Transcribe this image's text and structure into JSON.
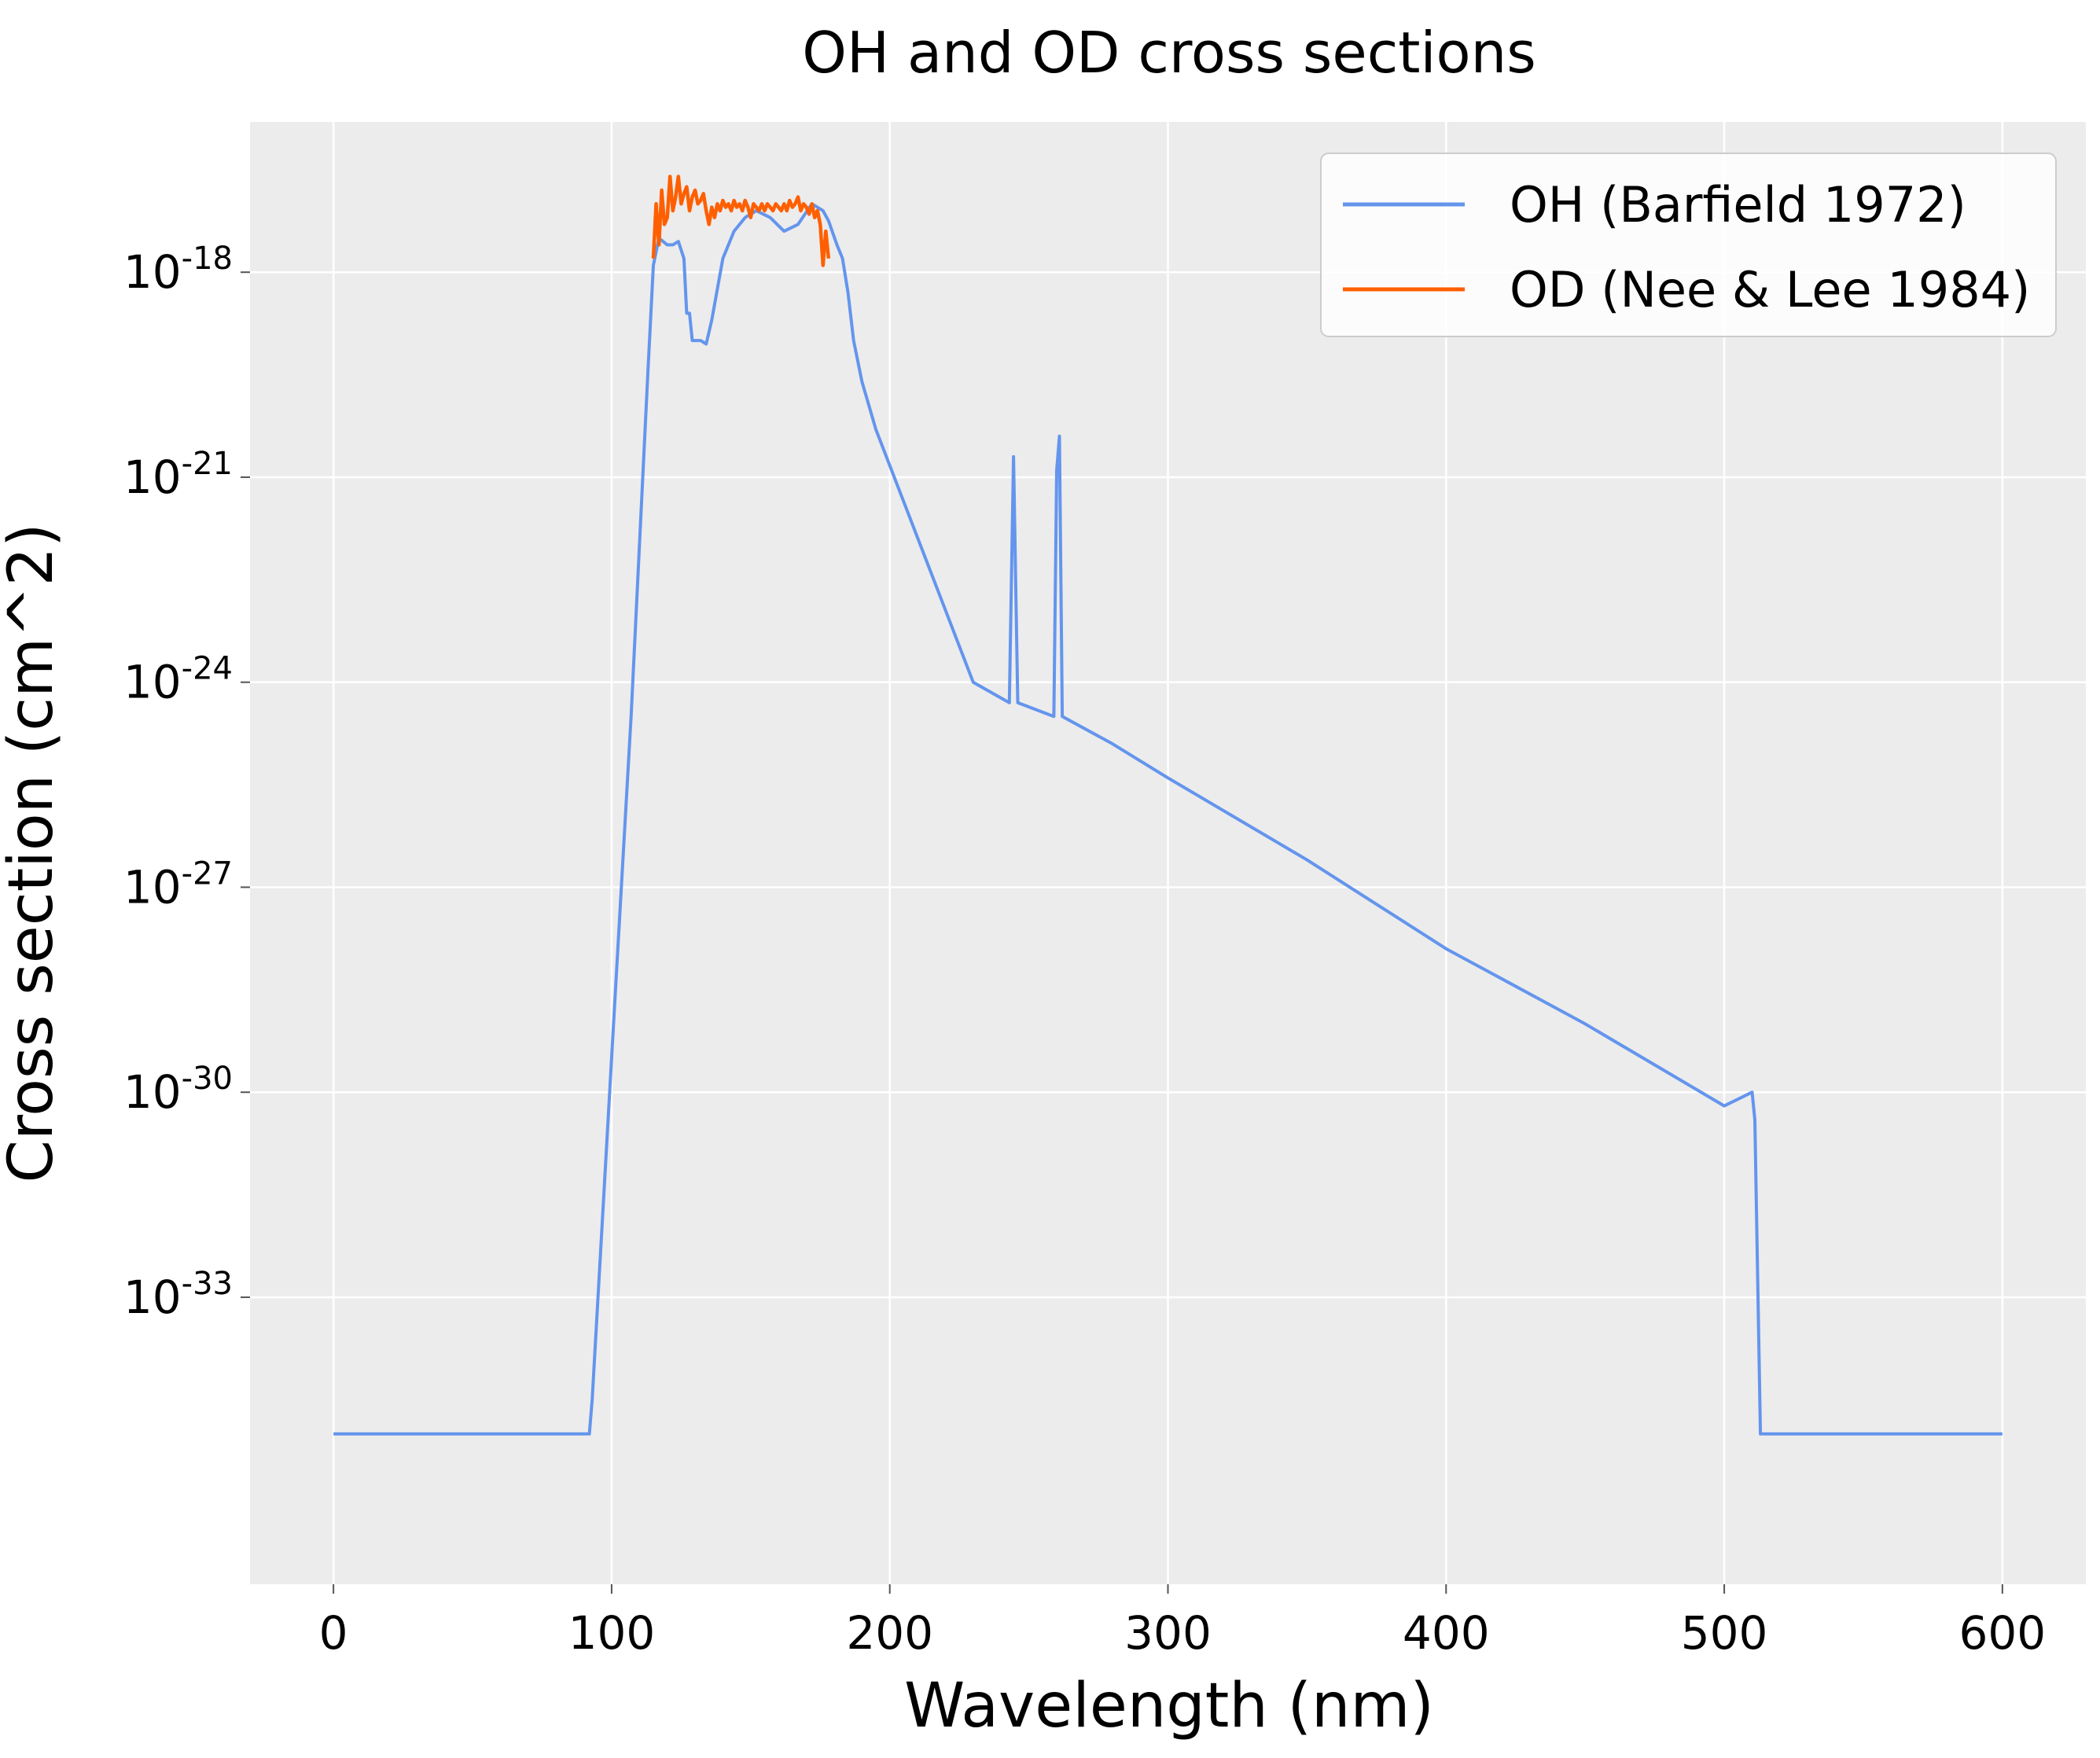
{
  "chart_data": {
    "type": "line",
    "title": "OH and OD cross sections",
    "xlabel": "Wavelength (nm)",
    "ylabel": "Cross section (cm^2)",
    "y_scale": "log",
    "xlim": [
      -30,
      630
    ],
    "ylim_exponent": [
      -37.2,
      -15.8
    ],
    "x_ticks": [
      {
        "value": 0,
        "label": "0"
      },
      {
        "value": 100,
        "label": "100"
      },
      {
        "value": 200,
        "label": "200"
      },
      {
        "value": 300,
        "label": "300"
      },
      {
        "value": 400,
        "label": "400"
      },
      {
        "value": 500,
        "label": "500"
      },
      {
        "value": 600,
        "label": "600"
      }
    ],
    "y_ticks": [
      {
        "exponent": -18,
        "base": "10",
        "power": "-18"
      },
      {
        "exponent": -21,
        "base": "10",
        "power": "-21"
      },
      {
        "exponent": -24,
        "base": "10",
        "power": "-24"
      },
      {
        "exponent": -27,
        "base": "10",
        "power": "-27"
      },
      {
        "exponent": -30,
        "base": "10",
        "power": "-30"
      },
      {
        "exponent": -33,
        "base": "10",
        "power": "-33"
      }
    ],
    "grid": true,
    "legend_position": "top-right",
    "series": [
      {
        "name": "OH (Barfield 1972)",
        "color": "#6495ED",
        "points": [
          [
            0,
            -35
          ],
          [
            92,
            -35
          ],
          [
            93,
            -34.5
          ],
          [
            100,
            -29.5
          ],
          [
            107,
            -24.5
          ],
          [
            113,
            -19.5
          ],
          [
            115,
            -17.9
          ],
          [
            117,
            -17.5
          ],
          [
            120,
            -17.6
          ],
          [
            122,
            -17.6
          ],
          [
            124,
            -17.55
          ],
          [
            126,
            -17.8
          ],
          [
            127,
            -18.6
          ],
          [
            128,
            -18.6
          ],
          [
            129,
            -19.0
          ],
          [
            132,
            -19.0
          ],
          [
            134,
            -19.05
          ],
          [
            136,
            -18.7
          ],
          [
            140,
            -17.8
          ],
          [
            144,
            -17.4
          ],
          [
            148,
            -17.2
          ],
          [
            152,
            -17.1
          ],
          [
            157,
            -17.2
          ],
          [
            162,
            -17.4
          ],
          [
            167,
            -17.3
          ],
          [
            172,
            -17.0
          ],
          [
            176,
            -17.1
          ],
          [
            178,
            -17.25
          ],
          [
            181,
            -17.6
          ],
          [
            183,
            -17.8
          ],
          [
            185,
            -18.3
          ],
          [
            187,
            -19.0
          ],
          [
            190,
            -19.6
          ],
          [
            195,
            -20.3
          ],
          [
            230,
            -24.0
          ],
          [
            243,
            -24.3
          ],
          [
            244.5,
            -20.7
          ],
          [
            246,
            -24.3
          ],
          [
            259,
            -24.5
          ],
          [
            260,
            -20.9
          ],
          [
            261,
            -20.4
          ],
          [
            262,
            -24.5
          ],
          [
            280,
            -24.9
          ],
          [
            300,
            -25.4
          ],
          [
            350,
            -26.6
          ],
          [
            400,
            -27.9
          ],
          [
            450,
            -29.0
          ],
          [
            500,
            -30.2
          ],
          [
            510,
            -30.0
          ],
          [
            511,
            -30.4
          ],
          [
            513,
            -35
          ],
          [
            600,
            -35
          ]
        ]
      },
      {
        "name": "OD (Nee & Lee 1984)",
        "color": "#FF5F00",
        "points": [
          [
            115,
            -17.8
          ],
          [
            116,
            -17.0
          ],
          [
            117,
            -17.6
          ],
          [
            118,
            -16.8
          ],
          [
            119,
            -17.3
          ],
          [
            120,
            -17.2
          ],
          [
            121,
            -16.6
          ],
          [
            122,
            -17.1
          ],
          [
            123,
            -16.9
          ],
          [
            124,
            -16.6
          ],
          [
            125,
            -17.0
          ],
          [
            126,
            -16.85
          ],
          [
            127,
            -16.75
          ],
          [
            128,
            -17.1
          ],
          [
            129,
            -16.9
          ],
          [
            130,
            -16.8
          ],
          [
            131,
            -17.0
          ],
          [
            132,
            -16.95
          ],
          [
            133,
            -16.85
          ],
          [
            134,
            -17.1
          ],
          [
            135,
            -17.3
          ],
          [
            136,
            -17.05
          ],
          [
            137,
            -17.2
          ],
          [
            138,
            -17.0
          ],
          [
            139,
            -17.1
          ],
          [
            140,
            -16.95
          ],
          [
            141,
            -17.05
          ],
          [
            142,
            -17.0
          ],
          [
            143,
            -17.1
          ],
          [
            144,
            -16.95
          ],
          [
            145,
            -17.05
          ],
          [
            146,
            -17.0
          ],
          [
            147,
            -17.1
          ],
          [
            148,
            -16.95
          ],
          [
            149,
            -17.05
          ],
          [
            150,
            -17.2
          ],
          [
            151,
            -17.0
          ],
          [
            152,
            -17.05
          ],
          [
            153,
            -17.1
          ],
          [
            154,
            -17.0
          ],
          [
            155,
            -17.1
          ],
          [
            156,
            -17.0
          ],
          [
            157,
            -17.05
          ],
          [
            158,
            -17.1
          ],
          [
            159,
            -17.0
          ],
          [
            160,
            -17.05
          ],
          [
            161,
            -17.1
          ],
          [
            162,
            -17.0
          ],
          [
            163,
            -17.1
          ],
          [
            164,
            -16.95
          ],
          [
            165,
            -17.05
          ],
          [
            166,
            -17.0
          ],
          [
            167,
            -16.9
          ],
          [
            168,
            -17.1
          ],
          [
            169,
            -17.0
          ],
          [
            170,
            -17.05
          ],
          [
            171,
            -17.15
          ],
          [
            172,
            -17.0
          ],
          [
            173,
            -17.2
          ],
          [
            174,
            -17.1
          ],
          [
            175,
            -17.3
          ],
          [
            176,
            -17.9
          ],
          [
            177,
            -17.4
          ],
          [
            178,
            -17.8
          ]
        ]
      }
    ]
  }
}
